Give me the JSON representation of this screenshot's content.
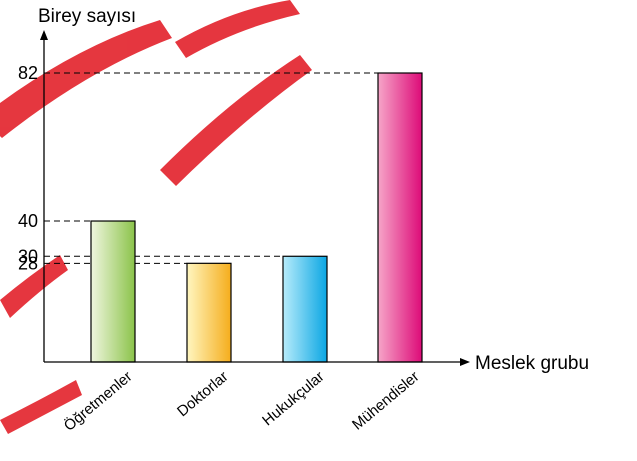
{
  "watermark": {
    "text": "ÖRNEK OLUŞTURMAK İÇİN KOPYALANDIRMAYINIZ",
    "color": "#e3262f"
  },
  "chart_data": {
    "type": "bar",
    "categories": [
      "Öğretmenler",
      "Doktorlar",
      "Hukukçular",
      "Mühendisler"
    ],
    "values": [
      40,
      28,
      30,
      82
    ],
    "ylabel": "Birey sayısı",
    "xlabel": "Meslek grubu",
    "ylim": [
      0,
      82
    ],
    "yticks": [
      28,
      30,
      40,
      82
    ],
    "grid": false,
    "guide_lines": "dashed",
    "bar_gradients": [
      [
        "#f0f6df",
        "#8bc34a"
      ],
      [
        "#fff6c0",
        "#f5ad1c"
      ],
      [
        "#b8ecfb",
        "#0aa6e3"
      ],
      [
        "#f6a5c8",
        "#dd0b78"
      ]
    ]
  }
}
